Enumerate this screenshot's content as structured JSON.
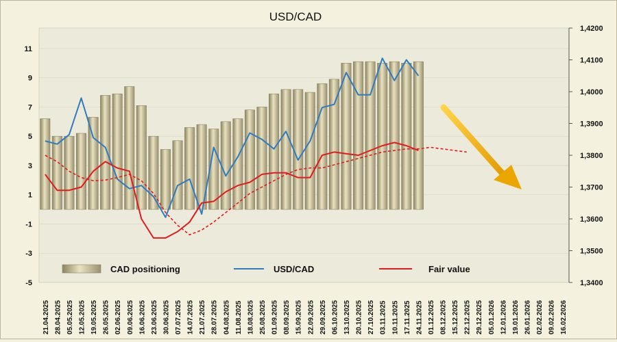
{
  "chart_data": {
    "type": "bar+line",
    "title": "USD/CAD",
    "left_axis": {
      "min": -5,
      "max": 12.4,
      "ticks": [
        11,
        9,
        7,
        5,
        3,
        1,
        -1,
        -3,
        -5
      ]
    },
    "right_axis": {
      "min": 1.34,
      "max": 1.42,
      "ticks": [
        "1,4200",
        "1,4100",
        "1,4000",
        "1,3900",
        "1,3800",
        "1,3700",
        "1,3600",
        "1,3500",
        "1,3400"
      ]
    },
    "categories": [
      "21.04.2025",
      "28.04.2025",
      "05.05.2025",
      "12.05.2025",
      "19.05.2025",
      "26.05.2025",
      "02.06.2025",
      "09.06.2025",
      "16.06.2025",
      "23.06.2025",
      "30.06.2025",
      "07.07.2025",
      "14.07.2025",
      "21.07.2025",
      "28.07.2025",
      "04.08.2025",
      "11.08.2025",
      "18.08.2025",
      "25.08.2025",
      "01.09.2025",
      "08.09.2025",
      "15.09.2025",
      "22.09.2025",
      "29.09.2025",
      "06.10.2025",
      "13.10.2025",
      "20.10.2025",
      "27.10.2025",
      "03.11.2025",
      "10.11.2025",
      "17.11.2025",
      "24.11.2025",
      "01.12.2025",
      "08.12.2025",
      "15.12.2025",
      "22.12.2025",
      "29.12.2025",
      "05.01.2026",
      "12.01.2026",
      "19.01.2026",
      "26.01.2026",
      "02.02.2026",
      "09.02.2026",
      "16.02.2026"
    ],
    "series": [
      {
        "name": "CAD positioning",
        "kind": "bar",
        "axis": "left",
        "color": "#c8bf94",
        "values": [
          6.2,
          5.0,
          5.0,
          5.2,
          6.3,
          7.8,
          7.9,
          8.4,
          7.1,
          5.0,
          4.1,
          4.7,
          5.6,
          5.8,
          5.5,
          6.0,
          6.2,
          6.8,
          7.0,
          7.9,
          8.2,
          8.2,
          8.0,
          8.6,
          8.9,
          10.0,
          10.1,
          10.1,
          10.0,
          10.1,
          10.0,
          10.1,
          null,
          null,
          null,
          null,
          null,
          null,
          null,
          null,
          null,
          null,
          null,
          null
        ]
      },
      {
        "name": "USD/CAD",
        "kind": "line",
        "axis": "right",
        "color": "#2e7bbf",
        "values": [
          1.3845,
          1.3835,
          1.3865,
          1.398,
          1.3855,
          1.3825,
          1.3725,
          1.3695,
          1.3705,
          1.367,
          1.3605,
          1.3705,
          1.3725,
          1.3615,
          1.3825,
          1.3735,
          1.3795,
          1.387,
          1.385,
          1.382,
          1.3875,
          1.3785,
          1.3845,
          1.395,
          1.396,
          1.406,
          1.399,
          1.399,
          1.4105,
          1.4035,
          1.41,
          1.405,
          null,
          null,
          null,
          null,
          null,
          null,
          null,
          null,
          null,
          null,
          null,
          null
        ]
      },
      {
        "name": "Fair value",
        "kind": "line",
        "axis": "right",
        "color": "#e01b1b",
        "values": [
          1.374,
          1.369,
          1.369,
          1.37,
          1.375,
          1.378,
          1.376,
          1.375,
          1.36,
          1.354,
          1.354,
          1.356,
          1.359,
          1.365,
          1.3655,
          1.3685,
          1.3705,
          1.3715,
          1.374,
          1.3745,
          1.3745,
          1.373,
          1.373,
          1.38,
          1.381,
          1.3805,
          1.38,
          1.3815,
          1.383,
          1.384,
          1.383,
          1.3815,
          null,
          null,
          null,
          null,
          null,
          null,
          null,
          null,
          null,
          null,
          null,
          null
        ]
      },
      {
        "name": "Fair value (trend)",
        "kind": "line-dashed",
        "axis": "right",
        "color": "#e01b1b",
        "values": [
          1.38,
          1.378,
          1.375,
          1.373,
          1.372,
          1.3722,
          1.373,
          1.374,
          1.372,
          1.368,
          1.362,
          1.358,
          1.355,
          1.3565,
          1.359,
          1.362,
          1.365,
          1.368,
          1.37,
          1.372,
          1.374,
          1.3755,
          1.376,
          1.376,
          1.377,
          1.378,
          1.379,
          1.38,
          1.381,
          1.3815,
          1.382,
          1.382,
          1.3825,
          1.382,
          1.3815,
          1.381,
          null,
          null,
          null,
          null,
          null,
          null,
          null,
          null
        ]
      }
    ],
    "legend": [
      "CAD positioning",
      "USD/CAD",
      "Fair value"
    ],
    "legend_placement": "bottom inside plot",
    "annotation": "yellow arrow pointing down",
    "arrow_color": "#f0b400"
  }
}
